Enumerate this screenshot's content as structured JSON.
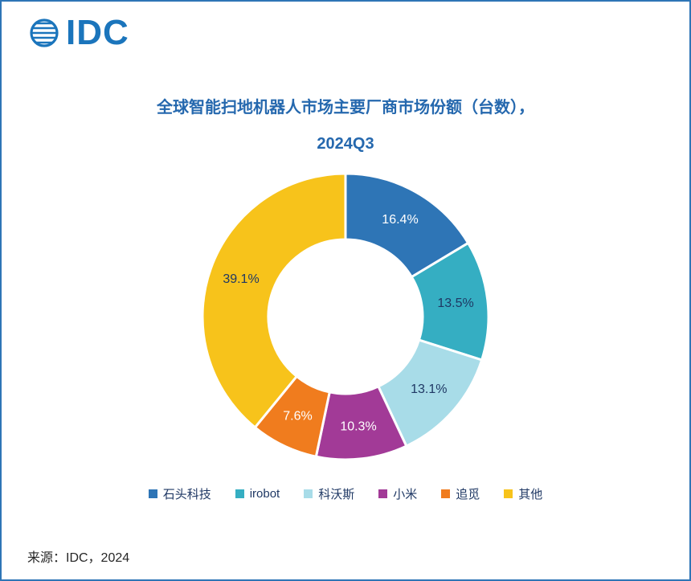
{
  "page": {
    "logo_text": "IDC",
    "source": "来源：IDC，2024"
  },
  "title": {
    "line1": "全球智能扫地机器人市场主要厂商市场份额（台数），",
    "line2": "2024Q3"
  },
  "chart_data": {
    "type": "pie",
    "donut": true,
    "title": "全球智能扫地机器人市场主要厂商市场份额（台数），2024Q3",
    "legend_position": "bottom",
    "categories": [
      "石头科技",
      "irobot",
      "科沃斯",
      "小米",
      "追觅",
      "其他"
    ],
    "values": [
      16.4,
      13.5,
      13.1,
      10.3,
      7.6,
      39.1
    ],
    "labels": [
      "16.4%",
      "13.5%",
      "13.1%",
      "10.3%",
      "7.6%",
      "39.1%"
    ],
    "colors": [
      "#2E75B6",
      "#35AEC2",
      "#A8DCE8",
      "#A23A97",
      "#F07C1E",
      "#F7C31B"
    ],
    "label_colors": [
      "#FFFFFF",
      "#1F3864",
      "#1F3864",
      "#FFFFFF",
      "#FFFFFF",
      "#1F3864"
    ],
    "start_angle_deg": 0,
    "direction": "clockwise"
  }
}
